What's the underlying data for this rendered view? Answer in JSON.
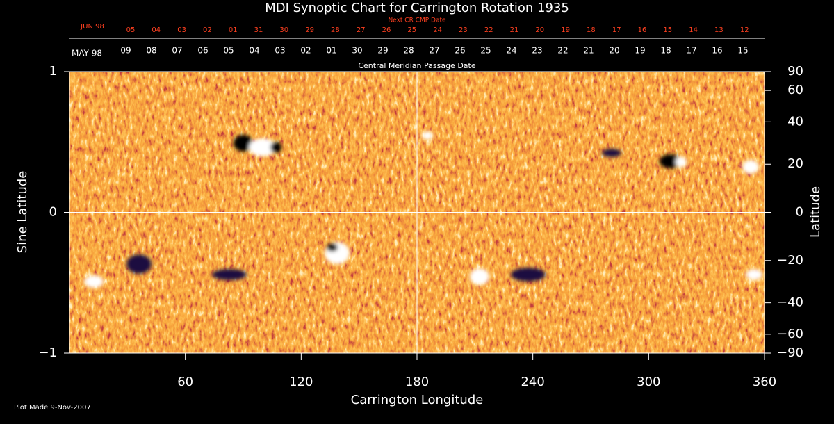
{
  "chart_data": {
    "type": "synoptic-map",
    "title": "MDI Synoptic Chart for Carrington Rotation 1935",
    "next_cmp_label": "Next CR CMP Date",
    "next_cmp_month": "JUN 98",
    "next_cmp_dates": [
      "05",
      "04",
      "03",
      "02",
      "01",
      "31",
      "30",
      "29",
      "28",
      "27",
      "26",
      "25",
      "24",
      "23",
      "22",
      "21",
      "20",
      "19",
      "18",
      "17",
      "16",
      "15",
      "14",
      "13",
      "12"
    ],
    "cmp_month": "MAY 98",
    "cmp_dates": [
      "09",
      "08",
      "07",
      "06",
      "05",
      "04",
      "03",
      "02",
      "01",
      "30",
      "29",
      "28",
      "27",
      "26",
      "25",
      "24",
      "23",
      "22",
      "21",
      "20",
      "19",
      "18",
      "17",
      "16",
      "15"
    ],
    "cmp_label": "Central Meridian Passage Date",
    "xlabel": "Carrington Longitude",
    "ylabel": "Sine Latitude",
    "y2label": "Latitude",
    "xlim": [
      0,
      360
    ],
    "xticks": [
      60,
      120,
      180,
      240,
      300,
      360
    ],
    "ylim": [
      -1,
      1
    ],
    "yticks": [
      {
        "value": -1,
        "label": "−1"
      },
      0,
      1
    ],
    "y2lim": [
      -90,
      90
    ],
    "y2scale": "sine",
    "y2ticks": [
      90,
      60,
      40,
      20,
      0,
      {
        "value": -20,
        "label": "−20"
      },
      {
        "value": -40,
        "label": "−40"
      },
      {
        "value": -60,
        "label": "−60"
      },
      {
        "value": -90,
        "label": "−90"
      }
    ],
    "grid": true,
    "footer": "Plot Made  9-Nov-2007"
  }
}
